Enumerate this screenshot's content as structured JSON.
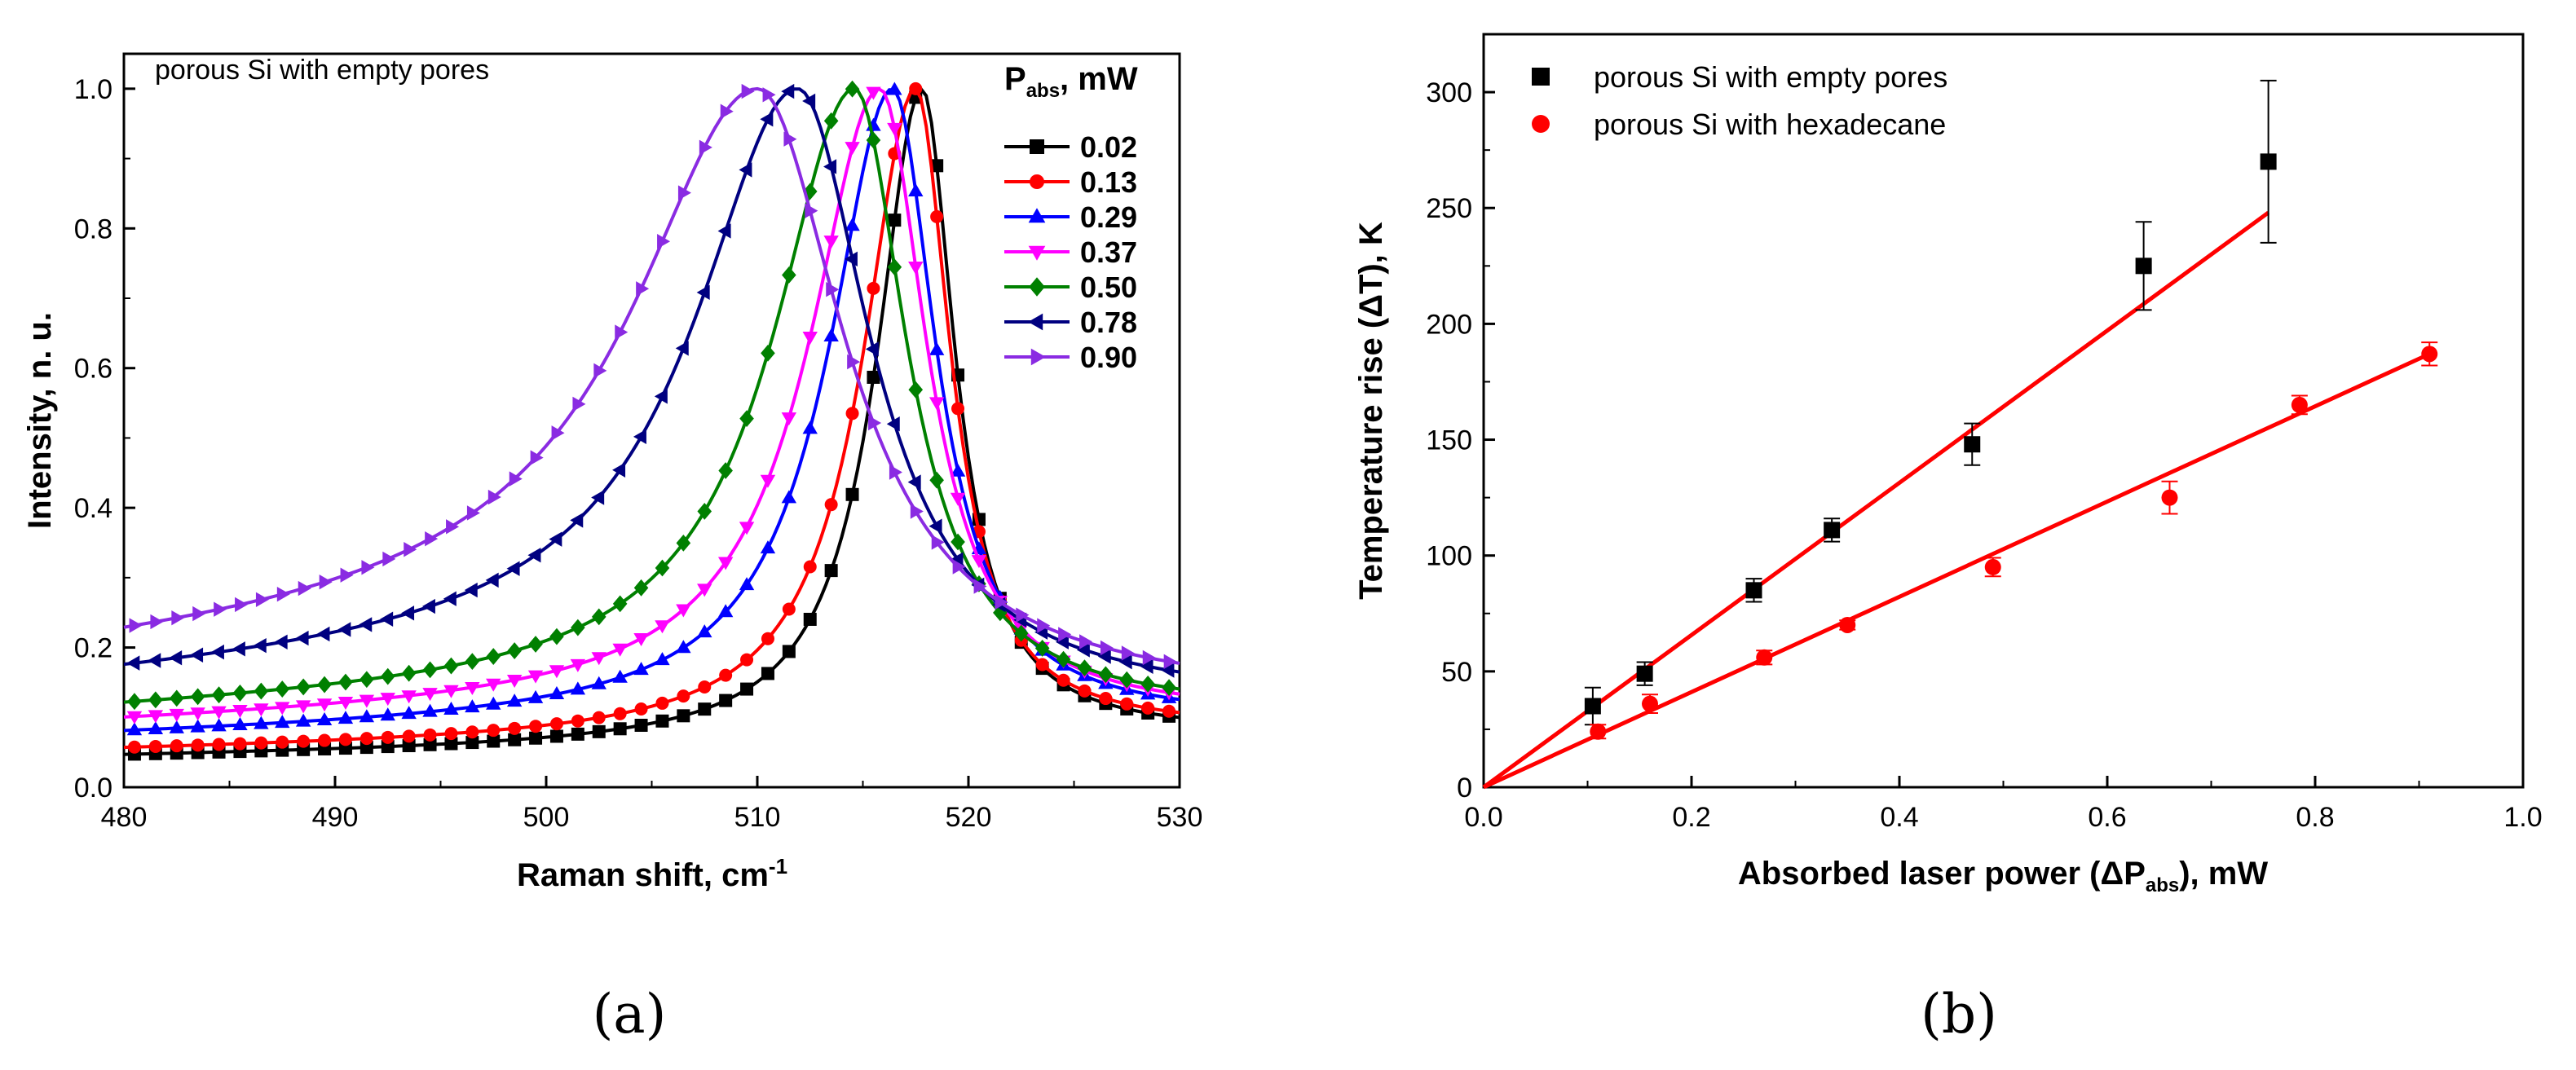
{
  "chart_data": [
    {
      "type": "line",
      "panel_label": "(a)",
      "annotation": "porous Si with empty pores",
      "xlabel": "Raman shift, cm",
      "xlabel_sup": "-1",
      "ylabel": "Intensity, n. u.",
      "xlim": [
        480,
        530
      ],
      "ylim": [
        0.0,
        1.05
      ],
      "xticks": [
        480,
        490,
        500,
        510,
        520,
        530
      ],
      "yticks": [
        "0.0",
        "0.2",
        "0.4",
        "0.6",
        "0.8",
        "1.0"
      ],
      "legend": {
        "title_main": "P",
        "title_sub": "abs",
        "title_tail": ", mW",
        "placement": "top-right"
      },
      "series": [
        {
          "name": "0.02",
          "color": "#000000",
          "marker": "square",
          "center": 517.8,
          "left_width": 2.6,
          "right_width": 1.9,
          "base_left": 0.05,
          "base_right": 0.065
        },
        {
          "name": "0.13",
          "color": "#ff0000",
          "marker": "circle",
          "center": 517.5,
          "left_width": 3.0,
          "right_width": 2.0,
          "base_left": 0.06,
          "base_right": 0.07
        },
        {
          "name": "0.29",
          "color": "#0000ff",
          "marker": "triangle-up",
          "center": 516.4,
          "left_width": 3.6,
          "right_width": 2.5,
          "base_left": 0.085,
          "base_right": 0.08
        },
        {
          "name": "0.37",
          "color": "#ff00ff",
          "marker": "triangle-down",
          "center": 515.8,
          "left_width": 4.0,
          "right_width": 2.7,
          "base_left": 0.105,
          "base_right": 0.085
        },
        {
          "name": "0.50",
          "color": "#008000",
          "marker": "diamond",
          "center": 514.6,
          "left_width": 4.6,
          "right_width": 3.0,
          "base_left": 0.125,
          "base_right": 0.09
        },
        {
          "name": "0.78",
          "color": "#000080",
          "marker": "triangle-left",
          "center": 511.9,
          "left_width": 5.8,
          "right_width": 4.2,
          "base_left": 0.175,
          "base_right": 0.1
        },
        {
          "name": "0.90",
          "color": "#8a2be2",
          "marker": "triangle-right",
          "center": 510.0,
          "left_width": 7.0,
          "right_width": 5.0,
          "base_left": 0.22,
          "base_right": 0.105
        }
      ]
    },
    {
      "type": "scatter",
      "panel_label": "(b)",
      "xlabel": "Absorbed laser power (ΔP",
      "xlabel_sub": "abs",
      "xlabel_tail": "), mW",
      "ylabel": "Temperature rise (ΔT), K",
      "xlim": [
        0.0,
        1.0
      ],
      "ylim": [
        0,
        325
      ],
      "xticks": [
        "0.0",
        "0.2",
        "0.4",
        "0.6",
        "0.8",
        "1.0"
      ],
      "yticks": [
        "0",
        "50",
        "100",
        "150",
        "200",
        "250",
        "300"
      ],
      "legend_placement": "top-left",
      "series": [
        {
          "name": "porous Si with empty pores",
          "marker": "square",
          "color": "#000000",
          "x": [
            0.105,
            0.155,
            0.26,
            0.335,
            0.47,
            0.635,
            0.755
          ],
          "y": [
            35,
            49,
            85,
            111,
            148,
            225,
            270
          ],
          "err": [
            8,
            5,
            5,
            5,
            9,
            19,
            35
          ],
          "fit": {
            "x": [
              0.0,
              0.755
            ],
            "y": [
              0,
              248
            ],
            "color": "#ff0000"
          }
        },
        {
          "name": "porous Si with hexadecane",
          "marker": "circle",
          "color": "#ff0000",
          "x": [
            0.11,
            0.16,
            0.27,
            0.35,
            0.49,
            0.66,
            0.785,
            0.91
          ],
          "y": [
            24,
            36,
            56,
            70,
            95,
            125,
            165,
            187
          ],
          "err": [
            3,
            4,
            3,
            2,
            4,
            7,
            4,
            5
          ],
          "fit": {
            "x": [
              0.0,
              0.91
            ],
            "y": [
              0,
              187
            ],
            "color": "#ff0000"
          }
        }
      ]
    }
  ]
}
